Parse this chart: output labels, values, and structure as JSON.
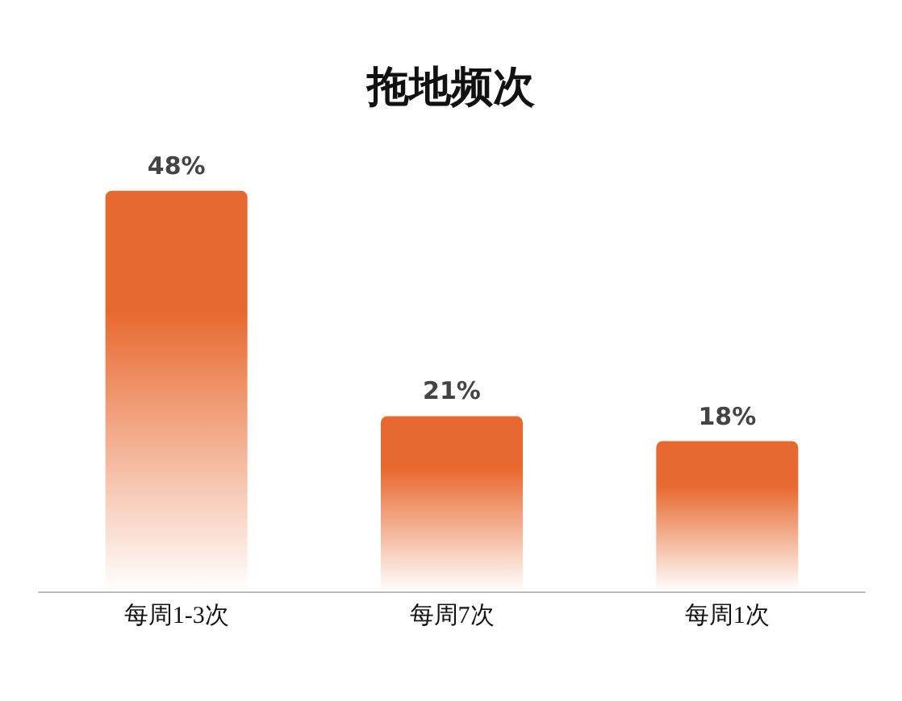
{
  "chart_data": {
    "type": "bar",
    "title": "拖地频次",
    "categories": [
      "每周1-3次",
      "每周7次",
      "每周1次"
    ],
    "values": [
      48,
      21,
      18
    ],
    "value_labels": [
      "48%",
      "21%",
      "18%"
    ],
    "color": "#e8692f",
    "grid": false
  }
}
